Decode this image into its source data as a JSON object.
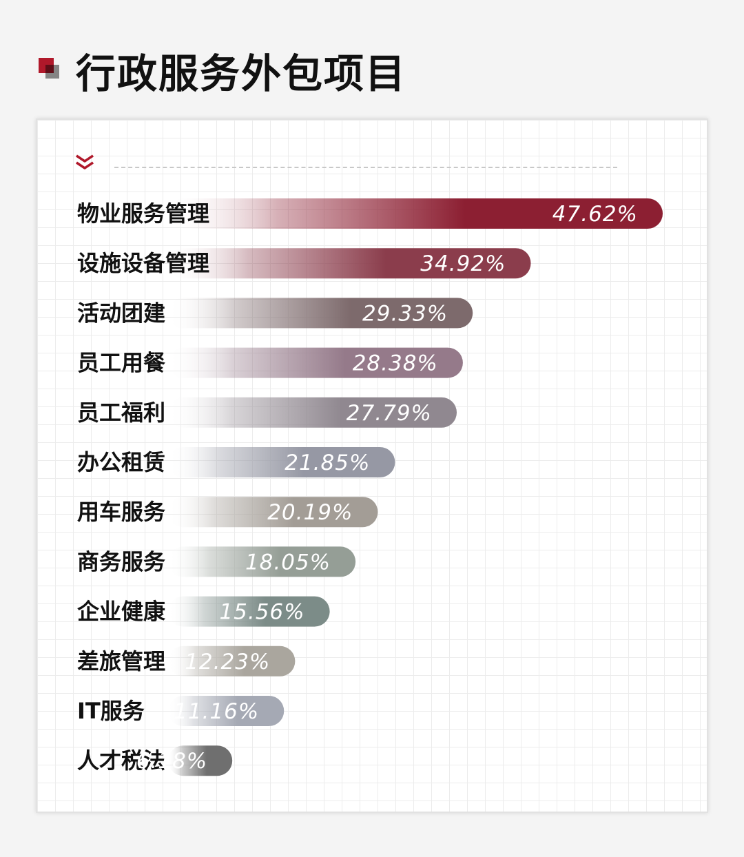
{
  "title": "行政服务外包项目",
  "chart_data": {
    "type": "bar",
    "orientation": "horizontal",
    "title": "行政服务外包项目",
    "categories": [
      "物业服务管理",
      "设施设备管理",
      "活动团建",
      "员工用餐",
      "员工福利",
      "办公租赁",
      "用车服务",
      "商务服务",
      "企业健康",
      "差旅管理",
      "IT服务",
      "人才税法"
    ],
    "values": [
      47.62,
      34.92,
      29.33,
      28.38,
      27.79,
      21.85,
      20.19,
      18.05,
      15.56,
      12.23,
      11.16,
      6.18
    ],
    "labels": [
      "47.62%",
      "34.92%",
      "29.33%",
      "28.38%",
      "27.79%",
      "21.85%",
      "20.19%",
      "18.05%",
      "15.56%",
      "12.23%",
      "11.16%",
      "6.18%"
    ],
    "colors": [
      "#8c1f32",
      "#8b3d4c",
      "#7d6a6c",
      "#957a8a",
      "#908890",
      "#9698a4",
      "#a39d96",
      "#959e96",
      "#7c8c88",
      "#aaa69e",
      "#a5a9b4",
      "#6f6f6f"
    ],
    "value_unit": "%",
    "grid": true
  }
}
